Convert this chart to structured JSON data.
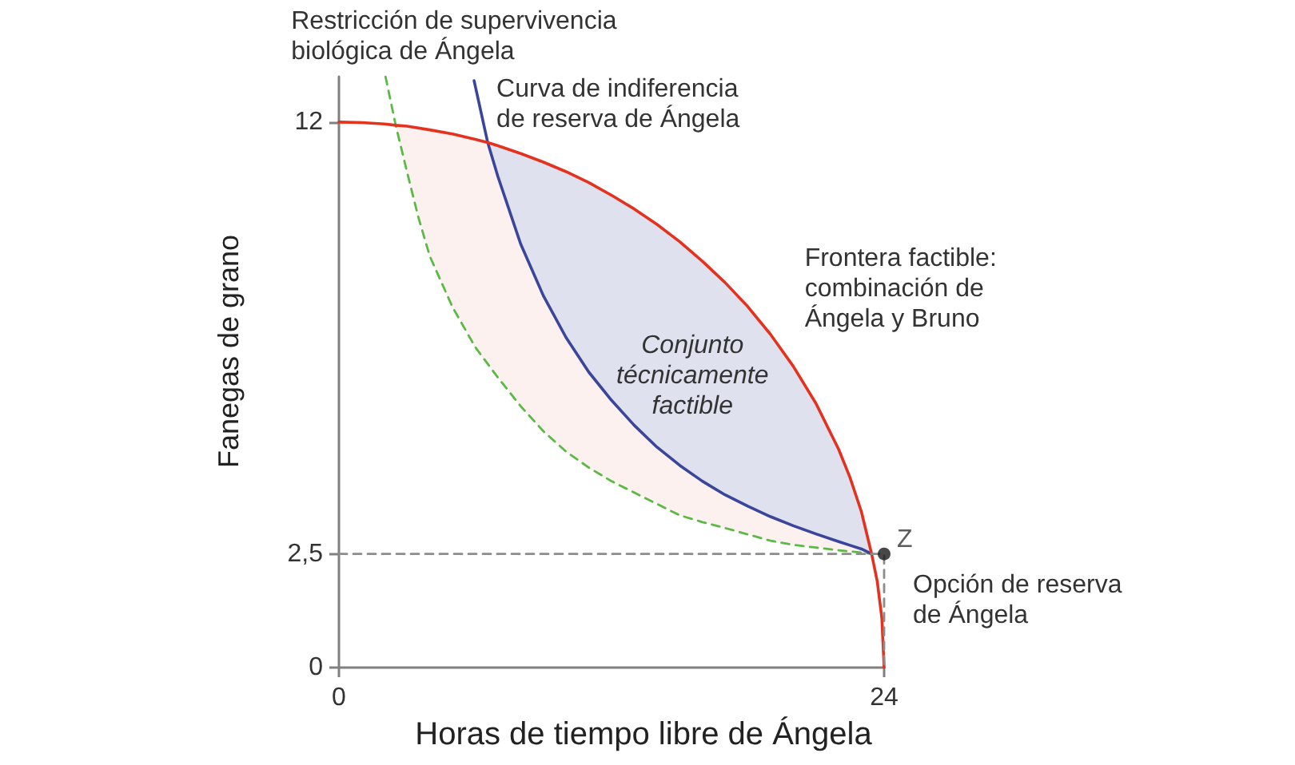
{
  "chart_data": {
    "type": "line",
    "xlabel": "Horas de tiempo libre de Ángela",
    "ylabel": "Fanegas de grano",
    "xlim": [
      0,
      24
    ],
    "xticks": [
      0,
      24
    ],
    "ylim": [
      0,
      13
    ],
    "yticks": [
      0,
      {
        "value": 2.5,
        "label": "2,5"
      },
      12
    ],
    "series": [
      {
        "name": "Restricción de supervivencia biológica de Ángela",
        "color": "#5cb946",
        "line_style": "dashed",
        "x": [
          2.05,
          2.5,
          3,
          3.5,
          4,
          5,
          6,
          7,
          8,
          9,
          10,
          11,
          12,
          13,
          14,
          15,
          16,
          17,
          18,
          19,
          20,
          21,
          22,
          23,
          23.45
        ],
        "values": [
          13.0,
          11.93,
          10.9,
          9.9,
          9.05,
          7.93,
          7.05,
          6.38,
          5.75,
          5.2,
          4.75,
          4.4,
          4.1,
          3.85,
          3.6,
          3.35,
          3.2,
          3.07,
          2.93,
          2.79,
          2.7,
          2.64,
          2.58,
          2.53,
          2.5
        ]
      },
      {
        "name": "Curva de indiferencia de reserva de Ángela",
        "color": "#3a459c",
        "x": [
          5.95,
          6.55,
          7,
          8,
          9,
          10,
          11,
          12,
          13,
          14,
          15,
          16,
          17,
          18,
          19,
          20,
          21,
          22,
          22.5,
          23,
          23.45
        ],
        "values": [
          12.91,
          11.55,
          10.8,
          9.32,
          8.18,
          7.26,
          6.5,
          5.88,
          5.33,
          4.85,
          4.45,
          4.1,
          3.8,
          3.55,
          3.32,
          3.12,
          2.94,
          2.77,
          2.69,
          2.61,
          2.5
        ],
        "lower": [
          null,
          11.55,
          10.8,
          9.32,
          8.18,
          7.26,
          6.5,
          5.88,
          5.33,
          4.85,
          4.45,
          4.1,
          3.8,
          3.55,
          3.32,
          3.12,
          2.94,
          2.77,
          2.69,
          2.61,
          2.5
        ],
        "upper": [
          null,
          11.55,
          11.48,
          11.31,
          11.12,
          10.91,
          10.67,
          10.39,
          10.09,
          9.75,
          9.37,
          8.94,
          8.47,
          7.94,
          7.33,
          6.63,
          5.81,
          4.8,
          4.18,
          3.43,
          2.5
        ]
      },
      {
        "name": "Frontera factible: combinación de Ángela y Bruno",
        "color": "#e4321f",
        "x": [
          0,
          1,
          2,
          2.5,
          3,
          4,
          5,
          6,
          6.55,
          7,
          8,
          9,
          10,
          11,
          12,
          13,
          14,
          15,
          16,
          17,
          18,
          19,
          20,
          21,
          22,
          22.5,
          23,
          23.45,
          23.7,
          23.9,
          24
        ],
        "values": [
          12,
          11.99,
          11.96,
          11.93,
          11.91,
          11.83,
          11.74,
          11.62,
          11.55,
          11.48,
          11.31,
          11.12,
          10.91,
          10.67,
          10.39,
          10.09,
          9.75,
          9.37,
          8.94,
          8.47,
          7.94,
          7.33,
          6.63,
          5.81,
          4.8,
          4.18,
          3.43,
          2.5,
          1.89,
          1.09,
          0
        ],
        "lower": [
          null,
          null,
          null,
          11.93,
          10.9,
          9.05,
          7.93,
          7.05,
          6.68,
          6.38,
          5.75,
          5.2,
          4.75,
          4.4,
          4.1,
          3.85,
          3.6,
          3.35,
          3.2,
          3.07,
          2.93,
          2.79,
          2.7,
          2.64,
          2.58,
          2.55,
          2.53,
          2.5,
          null,
          null,
          null
        ],
        "upper": [
          null,
          null,
          null,
          11.93,
          11.91,
          11.83,
          11.74,
          11.62,
          11.55,
          10.8,
          9.32,
          8.18,
          7.26,
          6.5,
          5.88,
          5.33,
          4.85,
          4.45,
          4.1,
          3.8,
          3.55,
          3.32,
          3.12,
          2.94,
          2.77,
          2.69,
          2.61,
          2.5,
          null,
          null,
          null
        ]
      },
      {
        "color": "#8c8c8c",
        "line_style": "dashed",
        "x": [
          0,
          24,
          24
        ],
        "values": [
          2.5,
          2.5,
          0
        ]
      },
      {
        "type": "scatter",
        "name": "Z",
        "color": "#1a1a1a",
        "marker": "circle",
        "x": [
          24
        ],
        "values": [
          2.5
        ]
      }
    ],
    "annotations": [
      "Conjunto técnicamente factible",
      {
        "text": "Opción de reserva de Ángela",
        "x": 24,
        "y": 2.5
      }
    ]
  }
}
